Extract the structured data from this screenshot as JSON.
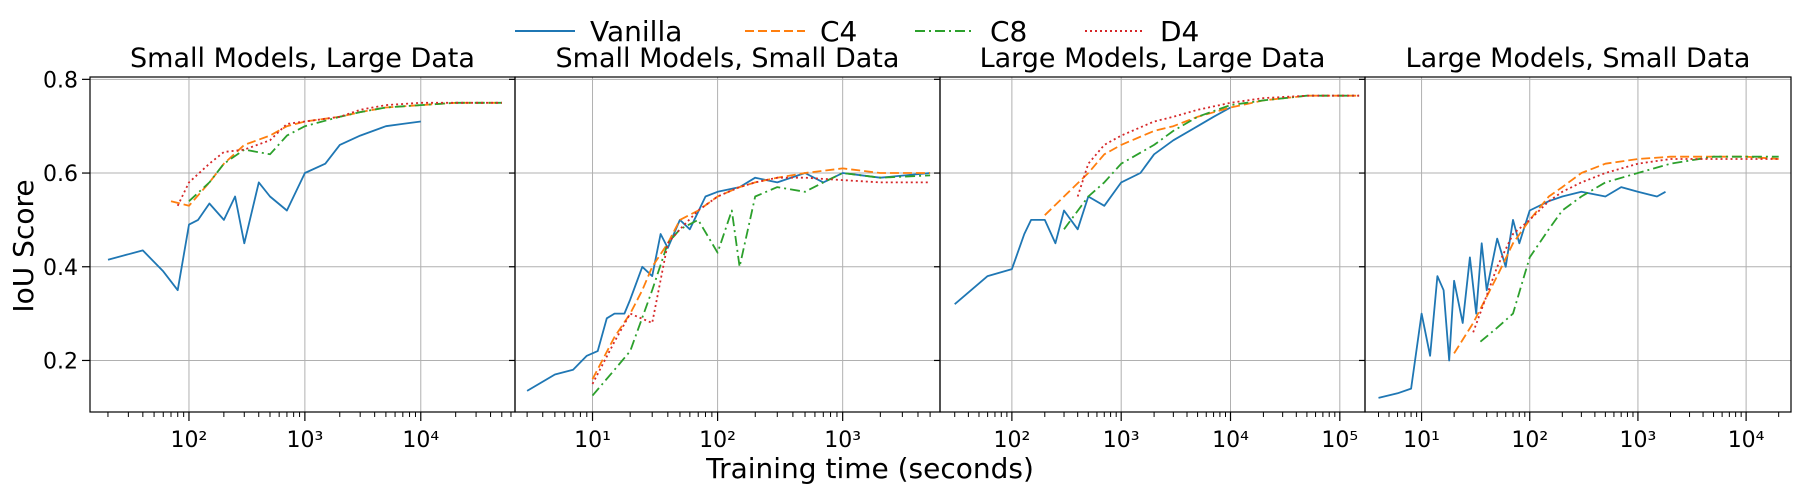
{
  "figure": {
    "ylabel": "IoU Score",
    "xlabel": "Training time (seconds)"
  },
  "legend": [
    {
      "name": "Vanilla",
      "color": "#1f77b4",
      "dash": "solid"
    },
    {
      "name": "C4",
      "color": "#ff7f0e",
      "dash": "dashed"
    },
    {
      "name": "C8",
      "color": "#2ca02c",
      "dash": "dashdot"
    },
    {
      "name": "D4",
      "color": "#d62728",
      "dash": "dotted"
    }
  ],
  "chart_data": [
    {
      "type": "line",
      "title": "Small Models, Large Data",
      "xscale": "log",
      "xlim": [
        14,
        65000
      ],
      "ylim": [
        0.09,
        0.805
      ],
      "yticks": [
        0.2,
        0.4,
        0.6,
        0.8
      ],
      "ytick_labels": [
        "0.2",
        "0.4",
        "0.6",
        "0.8"
      ],
      "xticks": [
        100,
        1000,
        10000
      ],
      "xtick_labels": [
        "10²",
        "10³",
        "10⁴"
      ],
      "series": [
        {
          "name": "Vanilla",
          "x": [
            20,
            40,
            60,
            80,
            100,
            120,
            150,
            200,
            250,
            300,
            400,
            500,
            700,
            1000,
            1500,
            2000,
            3000,
            5000,
            7000,
            10000
          ],
          "y": [
            0.415,
            0.435,
            0.39,
            0.35,
            0.49,
            0.5,
            0.535,
            0.5,
            0.55,
            0.45,
            0.58,
            0.55,
            0.52,
            0.6,
            0.62,
            0.66,
            0.68,
            0.7,
            0.705,
            0.71
          ]
        },
        {
          "name": "C4",
          "x": [
            70,
            100,
            150,
            200,
            300,
            500,
            700,
            1000,
            2000,
            3000,
            5000,
            10000,
            20000,
            50000
          ],
          "y": [
            0.54,
            0.53,
            0.58,
            0.62,
            0.66,
            0.68,
            0.7,
            0.71,
            0.72,
            0.73,
            0.74,
            0.745,
            0.75,
            0.75
          ]
        },
        {
          "name": "C8",
          "x": [
            100,
            150,
            200,
            300,
            500,
            700,
            1000,
            2000,
            3000,
            5000,
            10000,
            20000,
            50000
          ],
          "y": [
            0.54,
            0.58,
            0.62,
            0.65,
            0.64,
            0.68,
            0.7,
            0.72,
            0.73,
            0.74,
            0.745,
            0.75,
            0.75
          ]
        },
        {
          "name": "D4",
          "x": [
            80,
            100,
            150,
            200,
            300,
            500,
            700,
            1000,
            2000,
            3000,
            5000,
            10000,
            20000,
            50000
          ],
          "y": [
            0.53,
            0.58,
            0.62,
            0.645,
            0.65,
            0.67,
            0.705,
            0.71,
            0.72,
            0.735,
            0.745,
            0.75,
            0.75,
            0.75
          ]
        }
      ]
    },
    {
      "type": "line",
      "title": "Small Models, Small Data",
      "xscale": "log",
      "xlim": [
        2.4,
        6000
      ],
      "ylim": [
        0.09,
        0.805
      ],
      "xticks": [
        10,
        100,
        1000
      ],
      "xtick_labels": [
        "10¹",
        "10²",
        "10³"
      ],
      "series": [
        {
          "name": "Vanilla",
          "x": [
            3,
            5,
            7,
            9,
            11,
            13,
            15,
            18,
            20,
            25,
            30,
            35,
            40,
            50,
            60,
            80,
            100,
            150,
            200,
            300,
            500,
            700,
            1000,
            2000,
            5000
          ],
          "y": [
            0.135,
            0.17,
            0.18,
            0.21,
            0.22,
            0.29,
            0.3,
            0.3,
            0.33,
            0.4,
            0.38,
            0.47,
            0.44,
            0.5,
            0.48,
            0.55,
            0.56,
            0.57,
            0.59,
            0.58,
            0.6,
            0.58,
            0.6,
            0.59,
            0.6
          ]
        },
        {
          "name": "C4",
          "x": [
            10,
            15,
            20,
            25,
            30,
            40,
            50,
            70,
            100,
            150,
            200,
            300,
            500,
            1000,
            2000,
            5000
          ],
          "y": [
            0.16,
            0.25,
            0.3,
            0.35,
            0.4,
            0.45,
            0.5,
            0.52,
            0.55,
            0.57,
            0.58,
            0.59,
            0.6,
            0.61,
            0.6,
            0.6
          ]
        },
        {
          "name": "C8",
          "x": [
            10,
            15,
            20,
            30,
            40,
            50,
            70,
            100,
            130,
            150,
            200,
            300,
            500,
            700,
            1000,
            2000,
            5000
          ],
          "y": [
            0.125,
            0.18,
            0.22,
            0.35,
            0.45,
            0.48,
            0.5,
            0.43,
            0.52,
            0.4,
            0.55,
            0.57,
            0.56,
            0.58,
            0.6,
            0.59,
            0.595
          ]
        },
        {
          "name": "D4",
          "x": [
            10,
            15,
            20,
            30,
            40,
            50,
            70,
            100,
            150,
            200,
            300,
            500,
            1000,
            2000,
            5000
          ],
          "y": [
            0.15,
            0.24,
            0.3,
            0.28,
            0.45,
            0.48,
            0.52,
            0.55,
            0.57,
            0.58,
            0.59,
            0.59,
            0.585,
            0.58,
            0.58
          ]
        }
      ]
    },
    {
      "type": "line",
      "title": "Large Models, Large Data",
      "xscale": "log",
      "xlim": [
        22,
        170000
      ],
      "ylim": [
        0.09,
        0.805
      ],
      "xticks": [
        100,
        1000,
        10000,
        100000
      ],
      "xtick_labels": [
        "10²",
        "10³",
        "10⁴",
        "10⁵"
      ],
      "series": [
        {
          "name": "Vanilla",
          "x": [
            30,
            60,
            100,
            130,
            150,
            200,
            250,
            300,
            400,
            500,
            700,
            1000,
            1500,
            2000,
            3000,
            5000,
            7000,
            10000
          ],
          "y": [
            0.32,
            0.38,
            0.395,
            0.47,
            0.5,
            0.5,
            0.45,
            0.52,
            0.48,
            0.55,
            0.53,
            0.58,
            0.6,
            0.64,
            0.67,
            0.7,
            0.72,
            0.74
          ]
        },
        {
          "name": "C4",
          "x": [
            200,
            300,
            500,
            700,
            1000,
            2000,
            3000,
            5000,
            10000,
            20000,
            50000,
            100000,
            150000
          ],
          "y": [
            0.51,
            0.55,
            0.6,
            0.64,
            0.66,
            0.69,
            0.7,
            0.72,
            0.74,
            0.755,
            0.765,
            0.765,
            0.765
          ]
        },
        {
          "name": "C8",
          "x": [
            300,
            500,
            700,
            1000,
            2000,
            3000,
            5000,
            10000,
            20000,
            50000,
            100000,
            150000
          ],
          "y": [
            0.48,
            0.55,
            0.58,
            0.62,
            0.66,
            0.69,
            0.72,
            0.745,
            0.755,
            0.765,
            0.765,
            0.765
          ]
        },
        {
          "name": "D4",
          "x": [
            400,
            500,
            700,
            1000,
            2000,
            3000,
            5000,
            10000,
            20000,
            50000,
            100000,
            150000
          ],
          "y": [
            0.55,
            0.62,
            0.66,
            0.68,
            0.71,
            0.72,
            0.735,
            0.75,
            0.76,
            0.765,
            0.765,
            0.765
          ]
        }
      ]
    },
    {
      "type": "line",
      "title": "Large Models, Small Data",
      "xscale": "log",
      "xlim": [
        3,
        26000
      ],
      "ylim": [
        0.09,
        0.805
      ],
      "xticks": [
        10,
        100,
        1000,
        10000
      ],
      "xtick_labels": [
        "10¹",
        "10²",
        "10³",
        "10⁴"
      ],
      "series": [
        {
          "name": "Vanilla",
          "x": [
            4,
            6,
            8,
            10,
            12,
            14,
            16,
            18,
            20,
            24,
            28,
            32,
            36,
            40,
            50,
            60,
            70,
            80,
            100,
            150,
            200,
            300,
            500,
            700,
            1000,
            1500,
            1800
          ],
          "y": [
            0.12,
            0.13,
            0.14,
            0.3,
            0.21,
            0.38,
            0.35,
            0.2,
            0.37,
            0.28,
            0.42,
            0.3,
            0.45,
            0.35,
            0.46,
            0.4,
            0.5,
            0.45,
            0.52,
            0.54,
            0.55,
            0.56,
            0.55,
            0.57,
            0.56,
            0.55,
            0.56
          ]
        },
        {
          "name": "C4",
          "x": [
            20,
            30,
            50,
            70,
            100,
            150,
            200,
            300,
            500,
            1000,
            2000,
            5000,
            10000,
            20000
          ],
          "y": [
            0.215,
            0.28,
            0.38,
            0.45,
            0.5,
            0.55,
            0.57,
            0.6,
            0.62,
            0.63,
            0.635,
            0.635,
            0.635,
            0.63
          ]
        },
        {
          "name": "C8",
          "x": [
            35,
            50,
            70,
            100,
            150,
            200,
            300,
            500,
            1000,
            2000,
            5000,
            10000,
            20000
          ],
          "y": [
            0.24,
            0.27,
            0.3,
            0.42,
            0.48,
            0.52,
            0.55,
            0.58,
            0.6,
            0.62,
            0.635,
            0.635,
            0.635
          ]
        },
        {
          "name": "D4",
          "x": [
            30,
            50,
            70,
            100,
            150,
            200,
            300,
            500,
            1000,
            2000,
            5000,
            10000,
            20000
          ],
          "y": [
            0.26,
            0.4,
            0.47,
            0.5,
            0.54,
            0.56,
            0.58,
            0.6,
            0.62,
            0.63,
            0.63,
            0.63,
            0.63
          ]
        }
      ]
    }
  ]
}
